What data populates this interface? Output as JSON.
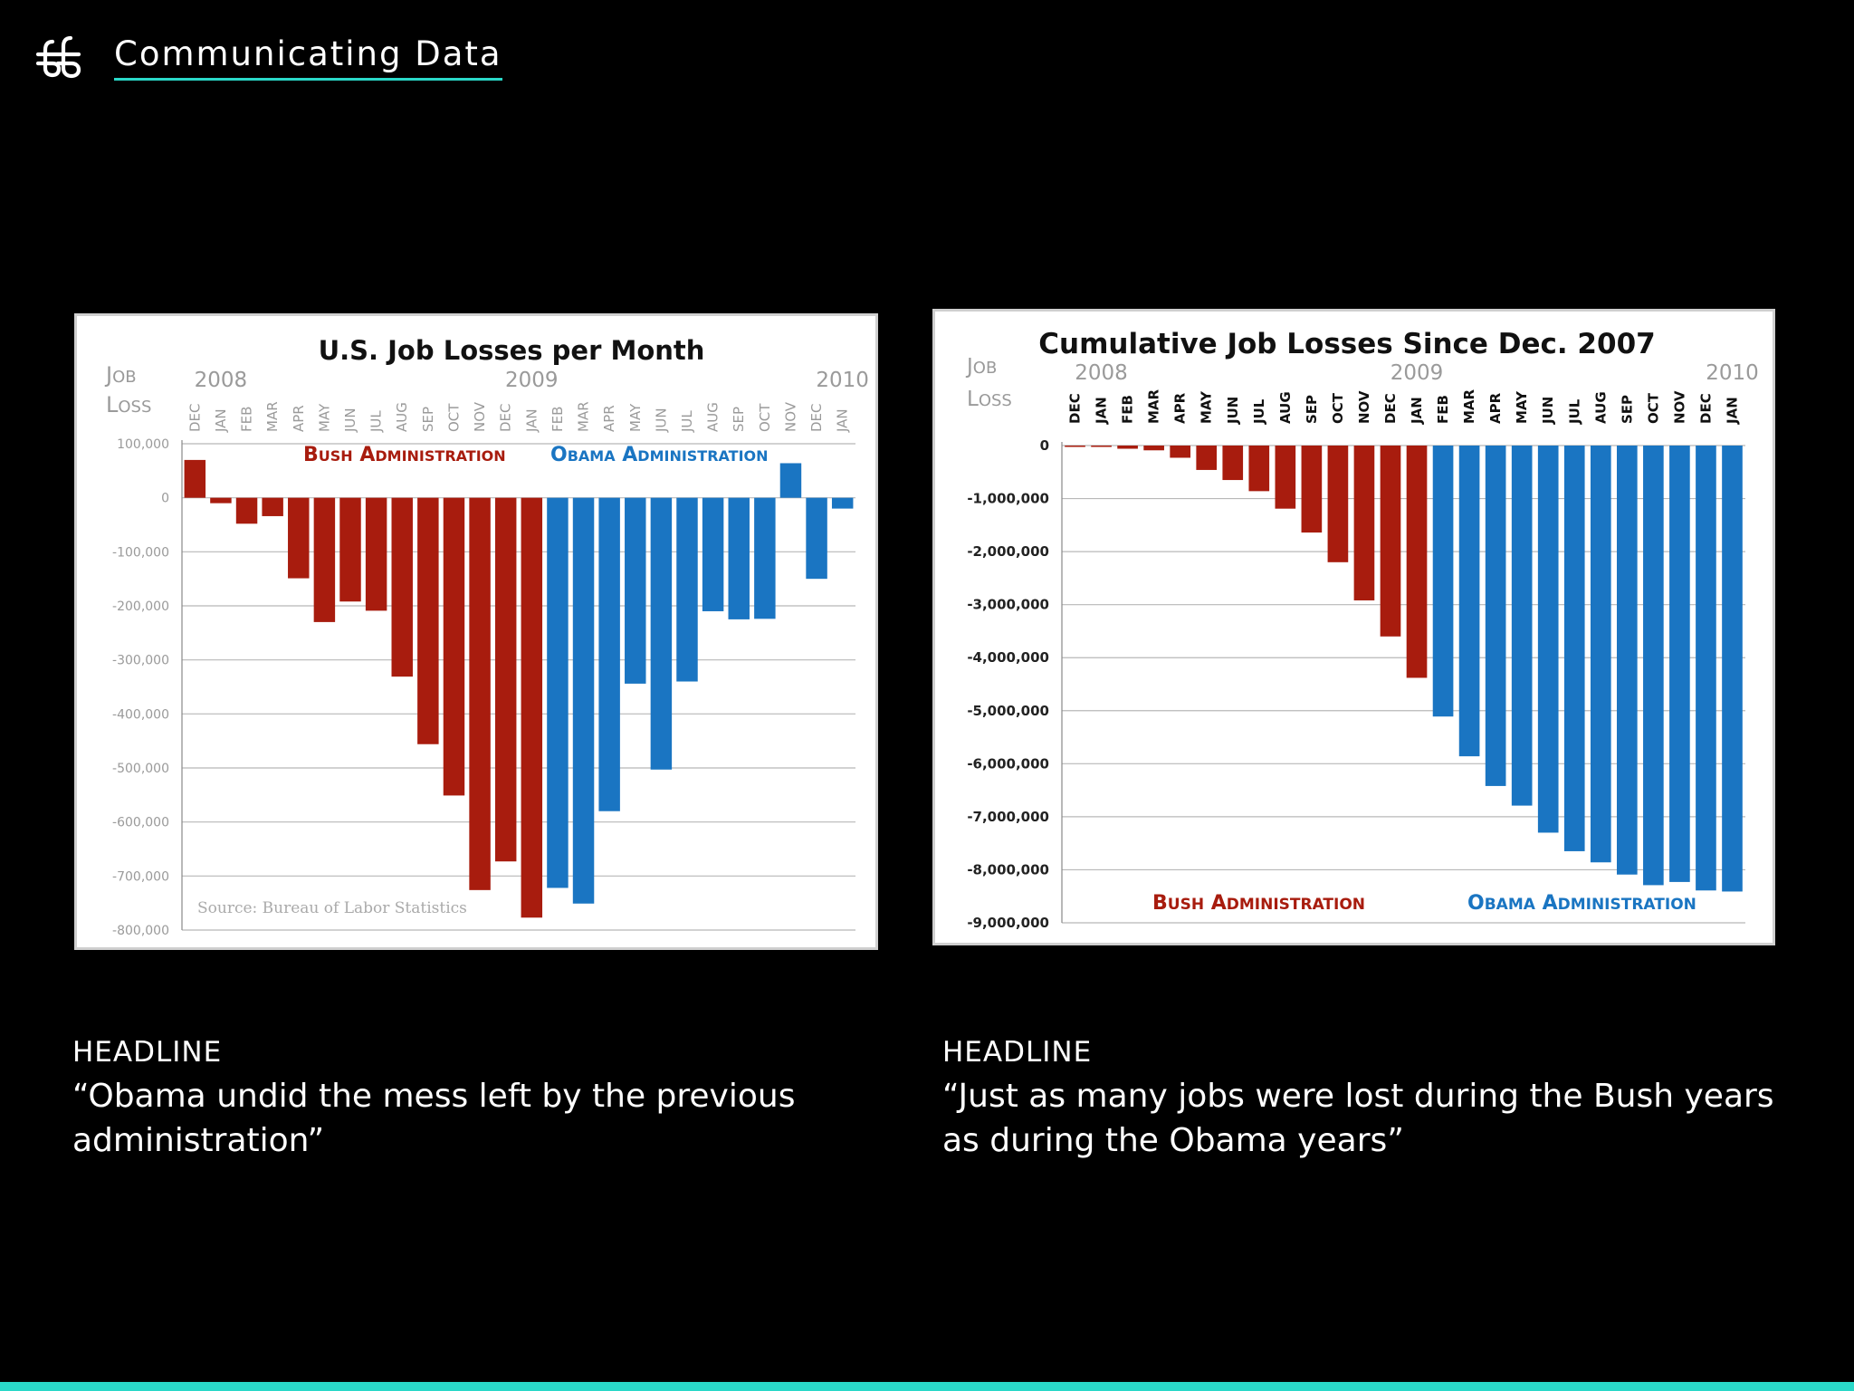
{
  "header": {
    "logo_icon": "brand-monogram-icon",
    "title": "Communicating Data",
    "accent_color": "#2ad8c8"
  },
  "captions": [
    {
      "kicker": "HEADLINE",
      "quote": "“Obama undid the mess left by the previous administration”"
    },
    {
      "kicker": "HEADLINE",
      "quote": "“Just as many jobs were lost during the Bush years as during the Obama years”"
    }
  ],
  "chart_data": [
    {
      "type": "bar",
      "title": "U.S. Job Losses per Month",
      "ylabel_lines": [
        "Job",
        "Loss"
      ],
      "categories": [
        "DEC",
        "JAN",
        "FEB",
        "MAR",
        "APR",
        "MAY",
        "JUN",
        "JUL",
        "AUG",
        "SEP",
        "OCT",
        "NOV",
        "DEC",
        "JAN",
        "FEB",
        "MAR",
        "APR",
        "MAY",
        "JUN",
        "JUL",
        "AUG",
        "SEP",
        "OCT",
        "NOV",
        "DEC",
        "JAN"
      ],
      "year_labels": [
        {
          "label": "2008",
          "index": 1
        },
        {
          "label": "2009",
          "index": 13
        },
        {
          "label": "2010",
          "index": 25
        }
      ],
      "series": [
        {
          "name": "Bush Administration",
          "color": "#a81c0e",
          "start": 0,
          "end": 13
        },
        {
          "name": "Obama Administration",
          "color": "#1a75c2",
          "start": 14,
          "end": 25
        }
      ],
      "values": [
        70000,
        -10000,
        -48000,
        -34000,
        -149000,
        -230000,
        -192000,
        -209000,
        -331000,
        -456000,
        -551000,
        -726000,
        -673000,
        -777000,
        -722000,
        -751000,
        -580000,
        -344000,
        -503000,
        -340000,
        -210000,
        -225000,
        -224000,
        64000,
        -150000,
        -20000
      ],
      "yticks": [
        100000,
        0,
        -100000,
        -200000,
        -300000,
        -400000,
        -500000,
        -600000,
        -700000,
        -800000
      ],
      "ytick_labels": [
        "100,000",
        "0",
        "-100,000",
        "-200,000",
        "-300,000",
        "-400,000",
        "-500,000",
        "-600,000",
        "-700,000",
        "-800,000"
      ],
      "ylim": [
        -800000,
        100000
      ],
      "grid": true,
      "legend_position": "top",
      "source": "Source: Bureau of Labor Statistics"
    },
    {
      "type": "bar",
      "title": "Cumulative Job Losses Since Dec. 2007",
      "ylabel_lines": [
        "Job",
        "Loss"
      ],
      "categories": [
        "DEC",
        "JAN",
        "FEB",
        "MAR",
        "APR",
        "MAY",
        "JUN",
        "JUL",
        "AUG",
        "SEP",
        "OCT",
        "NOV",
        "DEC",
        "JAN",
        "FEB",
        "MAR",
        "APR",
        "MAY",
        "JUN",
        "JUL",
        "AUG",
        "SEP",
        "OCT",
        "NOV",
        "DEC",
        "JAN"
      ],
      "year_labels": [
        {
          "label": "2008",
          "index": 1
        },
        {
          "label": "2009",
          "index": 13
        },
        {
          "label": "2010",
          "index": 25
        }
      ],
      "series": [
        {
          "name": "Bush Administration",
          "color": "#a81c0e",
          "start": 0,
          "end": 13
        },
        {
          "name": "Obama Administration",
          "color": "#1a75c2",
          "start": 14,
          "end": 25
        }
      ],
      "values": [
        0,
        -10000,
        -60000,
        -90000,
        -230000,
        -460000,
        -650000,
        -860000,
        -1190000,
        -1640000,
        -2200000,
        -2920000,
        -3600000,
        -4380000,
        -5110000,
        -5860000,
        -6420000,
        -6790000,
        -7300000,
        -7650000,
        -7860000,
        -8090000,
        -8290000,
        -8230000,
        -8390000,
        -8410000
      ],
      "yticks": [
        0,
        -1000000,
        -2000000,
        -3000000,
        -4000000,
        -5000000,
        -6000000,
        -7000000,
        -8000000,
        -9000000
      ],
      "ytick_labels": [
        "0",
        "-1,000,000",
        "-2,000,000",
        "-3,000,000",
        "-4,000,000",
        "-5,000,000",
        "-6,000,000",
        "-7,000,000",
        "-8,000,000",
        "-9,000,000"
      ],
      "ylim": [
        -9000000,
        0
      ],
      "grid": true,
      "legend_position": "bottom"
    }
  ]
}
